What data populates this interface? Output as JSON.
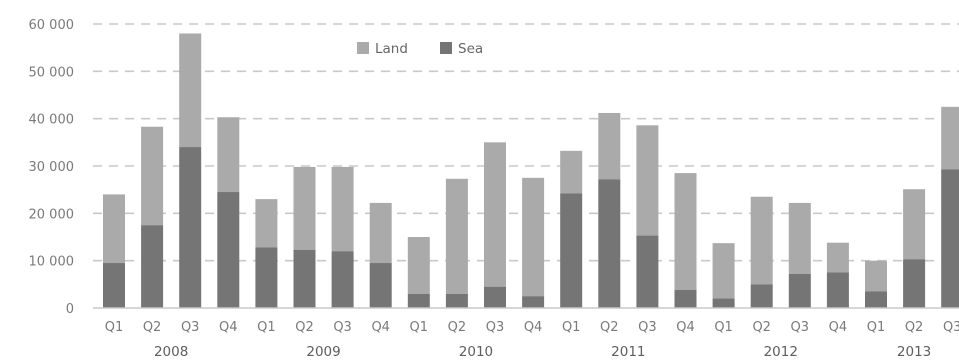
{
  "chart_data": {
    "type": "bar",
    "stacked": true,
    "title": "",
    "xlabel": "",
    "ylabel": "",
    "ylim": [
      0,
      60000
    ],
    "yticks": [
      0,
      10000,
      20000,
      30000,
      40000,
      50000,
      60000
    ],
    "ytick_labels": [
      "0",
      "10 000",
      "20 000",
      "30 000",
      "40 000",
      "50 000",
      "60 000"
    ],
    "grid": true,
    "legend_position": "top",
    "categories": [
      "Q1",
      "Q2",
      "Q3",
      "Q4",
      "Q1",
      "Q2",
      "Q3",
      "Q4",
      "Q1",
      "Q2",
      "Q3",
      "Q4",
      "Q1",
      "Q2",
      "Q3",
      "Q4",
      "Q1",
      "Q2",
      "Q3",
      "Q4",
      "Q1",
      "Q2",
      "Q3"
    ],
    "year_groups": [
      {
        "label": "2008",
        "start": 0,
        "end": 3
      },
      {
        "label": "2009",
        "start": 4,
        "end": 7
      },
      {
        "label": "2010",
        "start": 8,
        "end": 11
      },
      {
        "label": "2011",
        "start": 12,
        "end": 15
      },
      {
        "label": "2012",
        "start": 16,
        "end": 19
      },
      {
        "label": "2013",
        "start": 20,
        "end": 22
      }
    ],
    "series": [
      {
        "name": "Sea",
        "color": "#757575",
        "values": [
          9500,
          17500,
          34000,
          24500,
          12800,
          12300,
          12000,
          9500,
          3000,
          3000,
          4500,
          2500,
          24200,
          27200,
          15300,
          3800,
          2000,
          5000,
          7200,
          7500,
          3500,
          10300,
          29300
        ]
      },
      {
        "name": "Land",
        "color": "#aaaaaa",
        "values": [
          14500,
          20800,
          24000,
          15800,
          10200,
          17500,
          17800,
          12700,
          12000,
          24300,
          30500,
          25000,
          9000,
          14000,
          23300,
          24700,
          11700,
          18500,
          15000,
          6300,
          6500,
          14800,
          13200
        ]
      }
    ],
    "legend": [
      {
        "name": "Land",
        "color": "#aaaaaa"
      },
      {
        "name": "Sea",
        "color": "#757575"
      }
    ]
  }
}
